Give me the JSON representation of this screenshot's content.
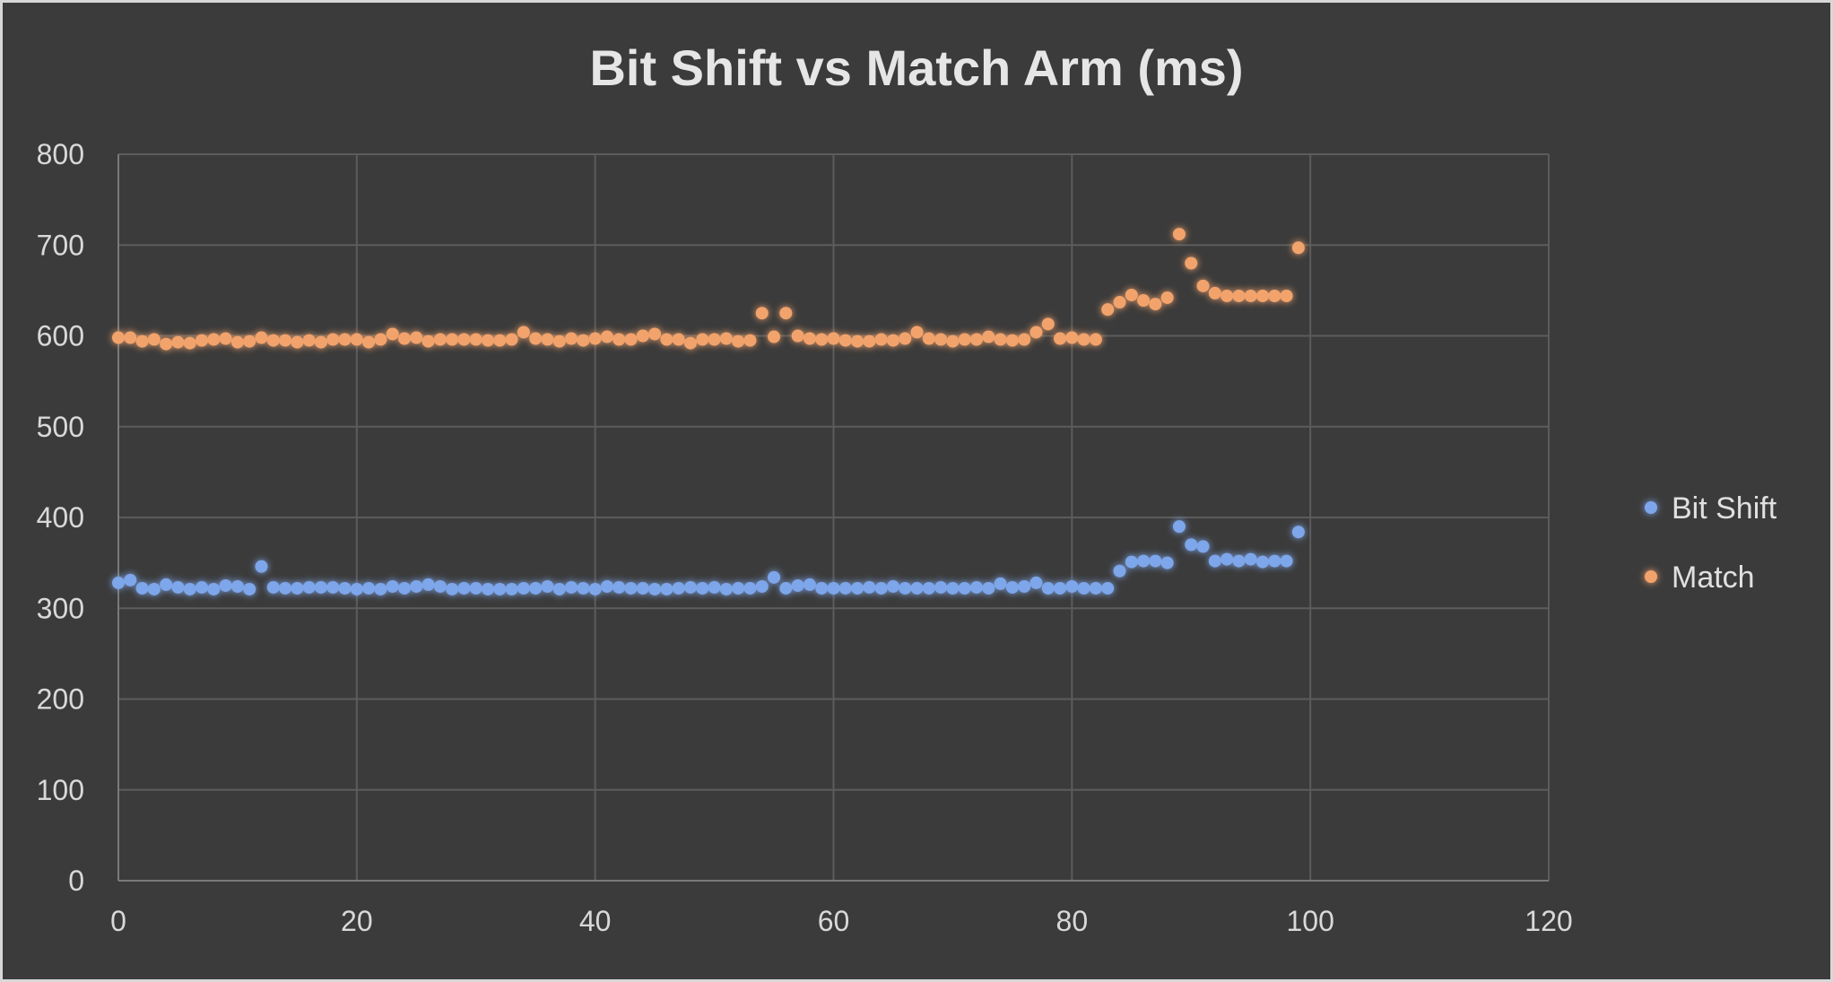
{
  "chart_data": {
    "type": "scatter",
    "title": "Bit Shift vs Match Arm (ms)",
    "xlabel": "",
    "ylabel": "",
    "xlim": [
      0,
      120
    ],
    "ylim": [
      0,
      800
    ],
    "x_ticks": [
      "0",
      "20",
      "40",
      "60",
      "80",
      "100",
      "120"
    ],
    "y_ticks": [
      "0",
      "100",
      "200",
      "300",
      "400",
      "500",
      "600",
      "700",
      "800"
    ],
    "grid": true,
    "legend_position": "right",
    "x": [
      0,
      1,
      2,
      3,
      4,
      5,
      6,
      7,
      8,
      9,
      10,
      11,
      12,
      13,
      14,
      15,
      16,
      17,
      18,
      19,
      20,
      21,
      22,
      23,
      24,
      25,
      26,
      27,
      28,
      29,
      30,
      31,
      32,
      33,
      34,
      35,
      36,
      37,
      38,
      39,
      40,
      41,
      42,
      43,
      44,
      45,
      46,
      47,
      48,
      49,
      50,
      51,
      52,
      53,
      54,
      55,
      56,
      57,
      58,
      59,
      60,
      61,
      62,
      63,
      64,
      65,
      66,
      67,
      68,
      69,
      70,
      71,
      72,
      73,
      74,
      75,
      76,
      77,
      78,
      79,
      80,
      81,
      82,
      83,
      84,
      85,
      86,
      87,
      88,
      89,
      90,
      91,
      92,
      93,
      94,
      95,
      96,
      97,
      98,
      99
    ],
    "series": [
      {
        "name": "Bit Shift",
        "color": "#7ea6ea",
        "values": [
          328,
          331,
          322,
          321,
          326,
          323,
          321,
          323,
          321,
          325,
          324,
          321,
          346,
          323,
          322,
          322,
          323,
          323,
          323,
          322,
          321,
          322,
          321,
          324,
          322,
          324,
          326,
          324,
          321,
          322,
          322,
          321,
          321,
          321,
          322,
          322,
          324,
          321,
          323,
          322,
          321,
          324,
          323,
          322,
          322,
          321,
          321,
          322,
          323,
          322,
          323,
          321,
          322,
          322,
          324,
          334,
          322,
          325,
          326,
          322,
          322,
          322,
          322,
          323,
          322,
          324,
          322,
          322,
          322,
          323,
          322,
          322,
          323,
          322,
          327,
          323,
          324,
          328,
          322,
          322,
          324,
          322,
          322,
          322,
          341,
          351,
          352,
          352,
          350,
          390,
          370,
          368,
          352,
          354,
          352,
          354,
          351,
          352,
          352,
          384
        ]
      },
      {
        "name": "Match",
        "color": "#f2a36c",
        "values": [
          598,
          598,
          594,
          596,
          591,
          593,
          592,
          595,
          596,
          597,
          593,
          594,
          598,
          595,
          595,
          593,
          595,
          593,
          596,
          596,
          596,
          593,
          596,
          602,
          597,
          598,
          594,
          596,
          596,
          596,
          596,
          595,
          595,
          596,
          604,
          597,
          596,
          594,
          597,
          595,
          597,
          599,
          596,
          596,
          600,
          602,
          596,
          596,
          592,
          596,
          596,
          597,
          594,
          595,
          625,
          599,
          625,
          600,
          597,
          596,
          597,
          595,
          594,
          594,
          596,
          595,
          597,
          604,
          597,
          596,
          594,
          596,
          596,
          599,
          596,
          595,
          596,
          604,
          613,
          597,
          598,
          596,
          596,
          629,
          637,
          645,
          639,
          635,
          642,
          712,
          680,
          655,
          647,
          644,
          644,
          644,
          644,
          644,
          644,
          697
        ]
      }
    ]
  }
}
